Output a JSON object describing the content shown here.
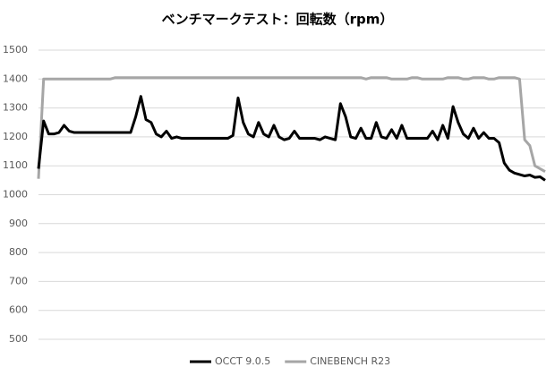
{
  "chart_data": {
    "type": "line",
    "title": "ベンチマークテスト：回転数（rpm）",
    "ylim": [
      500,
      1500
    ],
    "yticks": [
      500,
      600,
      700,
      800,
      900,
      1000,
      1100,
      1200,
      1300,
      1400,
      1500
    ],
    "grid": true,
    "legend": "bottom",
    "series": [
      {
        "name": "OCCT 9.0.5",
        "color": "#000000",
        "values": [
          1090,
          1255,
          1210,
          1210,
          1215,
          1240,
          1220,
          1215,
          1215,
          1215,
          1215,
          1215,
          1215,
          1215,
          1215,
          1215,
          1215,
          1215,
          1215,
          1270,
          1340,
          1260,
          1250,
          1210,
          1200,
          1220,
          1195,
          1200,
          1195,
          1195,
          1195,
          1195,
          1195,
          1195,
          1195,
          1195,
          1195,
          1195,
          1205,
          1335,
          1250,
          1210,
          1200,
          1250,
          1210,
          1200,
          1240,
          1200,
          1190,
          1195,
          1220,
          1195,
          1195,
          1195,
          1195,
          1190,
          1200,
          1195,
          1190,
          1315,
          1270,
          1200,
          1195,
          1230,
          1195,
          1195,
          1250,
          1200,
          1195,
          1225,
          1195,
          1240,
          1195,
          1195,
          1195,
          1195,
          1195,
          1220,
          1190,
          1240,
          1195,
          1305,
          1250,
          1210,
          1195,
          1230,
          1195,
          1215,
          1195,
          1195,
          1180,
          1110,
          1085,
          1075,
          1070,
          1065,
          1068,
          1060,
          1062,
          1050
        ]
      },
      {
        "name": "CINEBENCH R23",
        "color": "#a6a6a6",
        "values": [
          1055,
          1400,
          1400,
          1400,
          1400,
          1400,
          1400,
          1400,
          1400,
          1400,
          1400,
          1400,
          1400,
          1400,
          1400,
          1405,
          1405,
          1405,
          1405,
          1405,
          1405,
          1405,
          1405,
          1405,
          1405,
          1405,
          1405,
          1405,
          1405,
          1405,
          1405,
          1405,
          1405,
          1405,
          1405,
          1405,
          1405,
          1405,
          1405,
          1405,
          1405,
          1405,
          1405,
          1405,
          1405,
          1405,
          1405,
          1405,
          1405,
          1405,
          1405,
          1405,
          1405,
          1405,
          1405,
          1405,
          1405,
          1405,
          1405,
          1405,
          1405,
          1405,
          1405,
          1405,
          1400,
          1405,
          1405,
          1405,
          1405,
          1400,
          1400,
          1400,
          1400,
          1405,
          1405,
          1400,
          1400,
          1400,
          1400,
          1400,
          1405,
          1405,
          1405,
          1400,
          1400,
          1405,
          1405,
          1405,
          1400,
          1400,
          1405,
          1405,
          1405,
          1405,
          1400,
          1190,
          1170,
          1100,
          1090,
          1080
        ]
      }
    ]
  }
}
